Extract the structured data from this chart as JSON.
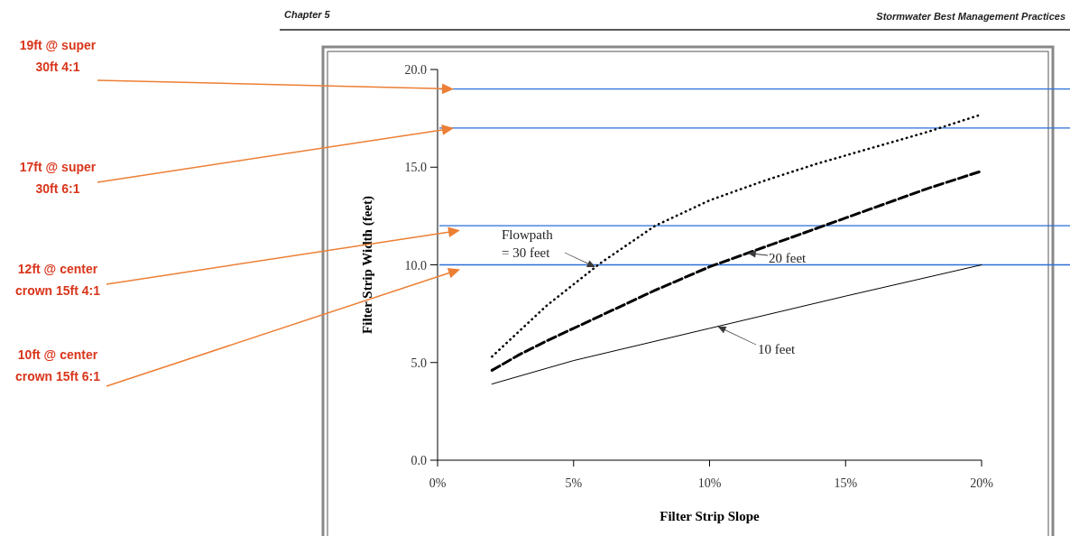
{
  "chart_data": {
    "type": "line",
    "xlabel": "Filter Strip Slope",
    "ylabel": "Filter Strip Width (feet)",
    "annotations": [
      "Chapter 5",
      "Stormwater Best Management Practices",
      "19ft @ super 30ft 4:1",
      "17ft @ super 30ft 6:1",
      "12ft @ center crown  15ft 4:1",
      "10ft @ center crown  15ft 6:1"
    ],
    "xlim": [
      0,
      20
    ],
    "xticks": [
      {
        "value": 0,
        "label": "0%"
      },
      {
        "value": 5,
        "label": "5%"
      },
      {
        "value": 10,
        "label": "10%"
      },
      {
        "value": 15,
        "label": "15%"
      },
      {
        "value": 20,
        "label": "20%"
      }
    ],
    "ylim": [
      0,
      20
    ],
    "yticks": [
      {
        "value": 0,
        "label": "0.0"
      },
      {
        "value": 5,
        "label": "5.0"
      },
      {
        "value": 10,
        "label": "10.0"
      },
      {
        "value": 15,
        "label": "15.0"
      },
      {
        "value": 20,
        "label": "20.0"
      }
    ],
    "grid": false,
    "series": [
      {
        "name": "Flowpath = 30 feet",
        "color": "#000000",
        "line_style": "dotted",
        "x": [
          2,
          3,
          4,
          5,
          6,
          8,
          10,
          12,
          14,
          16,
          18,
          20
        ],
        "values": [
          5.3,
          6.6,
          7.9,
          9.0,
          10.1,
          12.0,
          13.3,
          14.3,
          15.2,
          16.0,
          16.8,
          17.7
        ]
      },
      {
        "name": "20 feet",
        "color": "#000000",
        "line_style": "dashed",
        "x": [
          2,
          3,
          4,
          5,
          6,
          8,
          10,
          12,
          14,
          16,
          18,
          20
        ],
        "values": [
          4.6,
          5.4,
          6.1,
          6.75,
          7.4,
          8.7,
          9.9,
          10.9,
          11.9,
          12.9,
          13.9,
          14.8
        ]
      },
      {
        "name": "10 feet",
        "color": "#000000",
        "line_style": "solid",
        "x": [
          2,
          5,
          10,
          15,
          20
        ],
        "values": [
          3.9,
          5.1,
          6.75,
          8.4,
          10.0
        ]
      }
    ],
    "ref_lines": [
      {
        "axis": "y",
        "value": 19,
        "color": "#2a6fd6"
      },
      {
        "axis": "y",
        "value": 17,
        "color": "#2a6fd6"
      },
      {
        "axis": "y",
        "value": 12,
        "color": "#2a6fd6"
      },
      {
        "axis": "y",
        "value": 10,
        "color": "#2a6fd6"
      }
    ]
  }
}
